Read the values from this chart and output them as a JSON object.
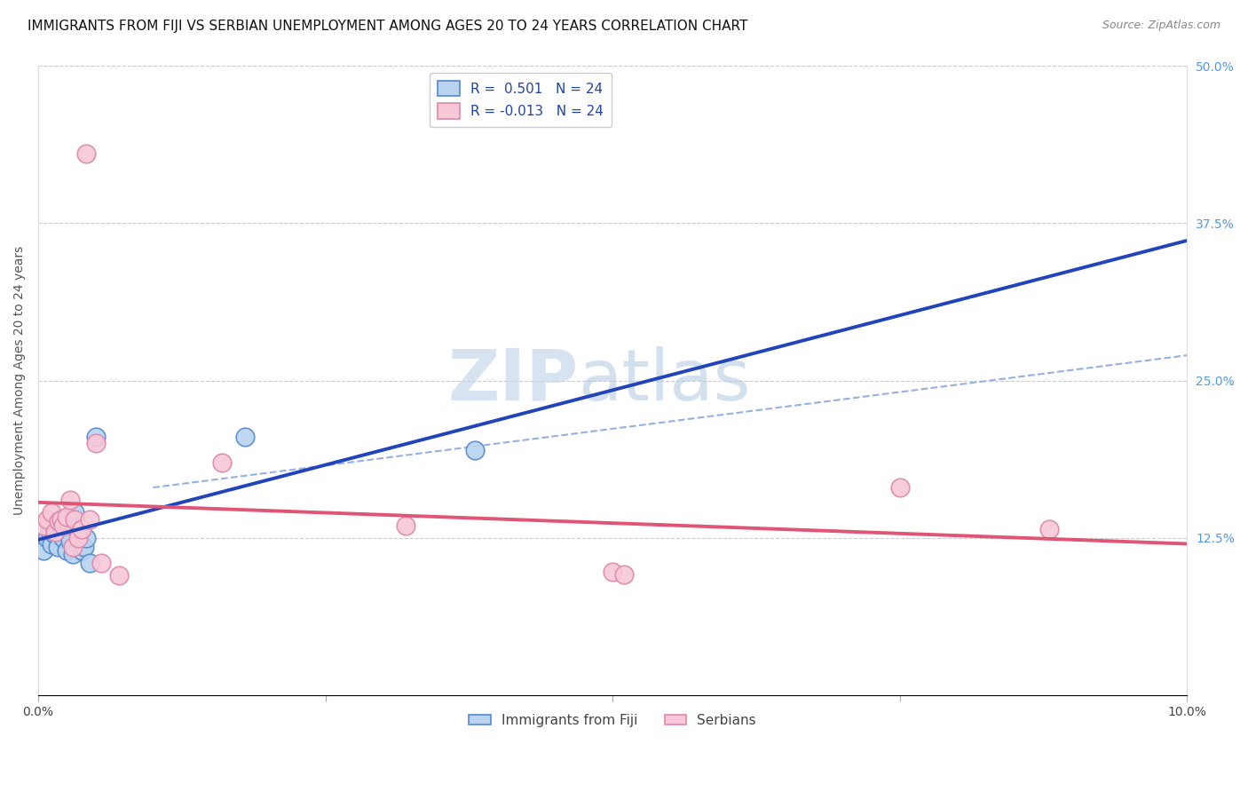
{
  "title": "IMMIGRANTS FROM FIJI VS SERBIAN UNEMPLOYMENT AMONG AGES 20 TO 24 YEARS CORRELATION CHART",
  "source": "Source: ZipAtlas.com",
  "ylabel": "Unemployment Among Ages 20 to 24 years",
  "xlim": [
    0.0,
    10.0
  ],
  "ylim": [
    0.0,
    50.0
  ],
  "right_yticks": [
    0.0,
    12.5,
    25.0,
    37.5,
    50.0
  ],
  "right_yticklabels": [
    "",
    "12.5%",
    "25.0%",
    "37.5%",
    "50.0%"
  ],
  "watermark_zip": "ZIP",
  "watermark_atlas": "atlas",
  "legend_entries": [
    {
      "label": "R =  0.501   N = 24"
    },
    {
      "label": "R = -0.013   N = 24"
    }
  ],
  "legend_bottom": [
    {
      "label": "Immigrants from Fiji"
    },
    {
      "label": "Serbians"
    }
  ],
  "fiji_x": [
    0.05,
    0.08,
    0.1,
    0.12,
    0.13,
    0.15,
    0.17,
    0.18,
    0.2,
    0.22,
    0.23,
    0.25,
    0.27,
    0.28,
    0.3,
    0.32,
    0.35,
    0.38,
    0.4,
    0.42,
    0.45,
    0.5,
    1.8,
    3.8
  ],
  "fiji_y": [
    11.5,
    12.5,
    13.0,
    12.0,
    13.5,
    12.8,
    11.8,
    13.2,
    13.0,
    12.5,
    14.0,
    11.5,
    13.8,
    12.3,
    11.2,
    14.5,
    13.0,
    11.5,
    11.8,
    12.5,
    10.5,
    20.5,
    20.5,
    19.5
  ],
  "serbian_x": [
    0.05,
    0.08,
    0.12,
    0.15,
    0.18,
    0.2,
    0.22,
    0.25,
    0.28,
    0.3,
    0.32,
    0.35,
    0.38,
    0.42,
    0.45,
    0.5,
    0.55,
    0.7,
    1.6,
    3.2,
    5.0,
    5.1,
    7.5,
    8.8
  ],
  "serbian_y": [
    13.5,
    14.0,
    14.5,
    13.0,
    13.8,
    14.0,
    13.5,
    14.2,
    15.5,
    11.8,
    14.0,
    12.5,
    13.2,
    43.0,
    14.0,
    20.0,
    10.5,
    9.5,
    18.5,
    13.5,
    9.8,
    9.6,
    16.5,
    13.2
  ],
  "blue_scatter_face": "#b8d4f0",
  "blue_scatter_edge": "#5588cc",
  "pink_scatter_face": "#f8c8d8",
  "pink_scatter_edge": "#dd88aa",
  "blue_line_color": "#2244bb",
  "pink_line_color": "#e05575",
  "dashed_line_color": "#88aadd",
  "grid_color": "#cccccc",
  "background_color": "#ffffff",
  "title_fontsize": 11,
  "axis_label_fontsize": 10,
  "tick_fontsize": 10,
  "legend_fontsize": 11,
  "source_fontsize": 9
}
